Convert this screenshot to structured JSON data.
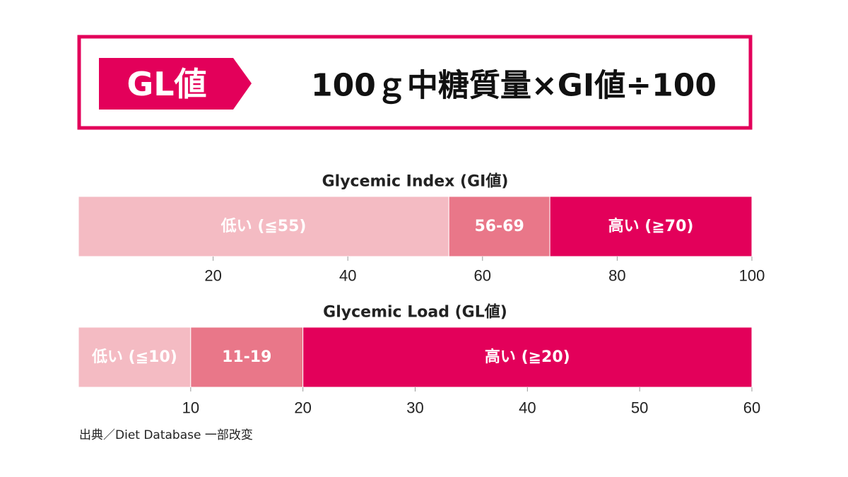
{
  "header": {
    "label": "GL値",
    "formula": "100ｇ中糖質量×GI値÷100"
  },
  "chart_data": [
    {
      "type": "range_bar",
      "title": "Glycemic Index (GI値)",
      "categories": [
        "低い (≦55)",
        "56-69",
        "高い (≧70)"
      ],
      "values": [
        55,
        15,
        30
      ],
      "colors": [
        "#f4bbc3",
        "#e97789",
        "#e3005a"
      ],
      "xlim": [
        0,
        100
      ],
      "xticks": [
        20,
        40,
        60,
        80,
        100
      ]
    },
    {
      "type": "range_bar",
      "title": "Glycemic Load (GL値)",
      "categories": [
        "低い (≦10)",
        "11-19",
        "高い (≧20)"
      ],
      "values": [
        10,
        10,
        40
      ],
      "colors": [
        "#f4bbc3",
        "#e97789",
        "#e3005a"
      ],
      "xlim": [
        0,
        60
      ],
      "xticks": [
        10,
        20,
        30,
        40,
        50,
        60
      ]
    }
  ],
  "source": "出典／Diet Database 一部改変"
}
